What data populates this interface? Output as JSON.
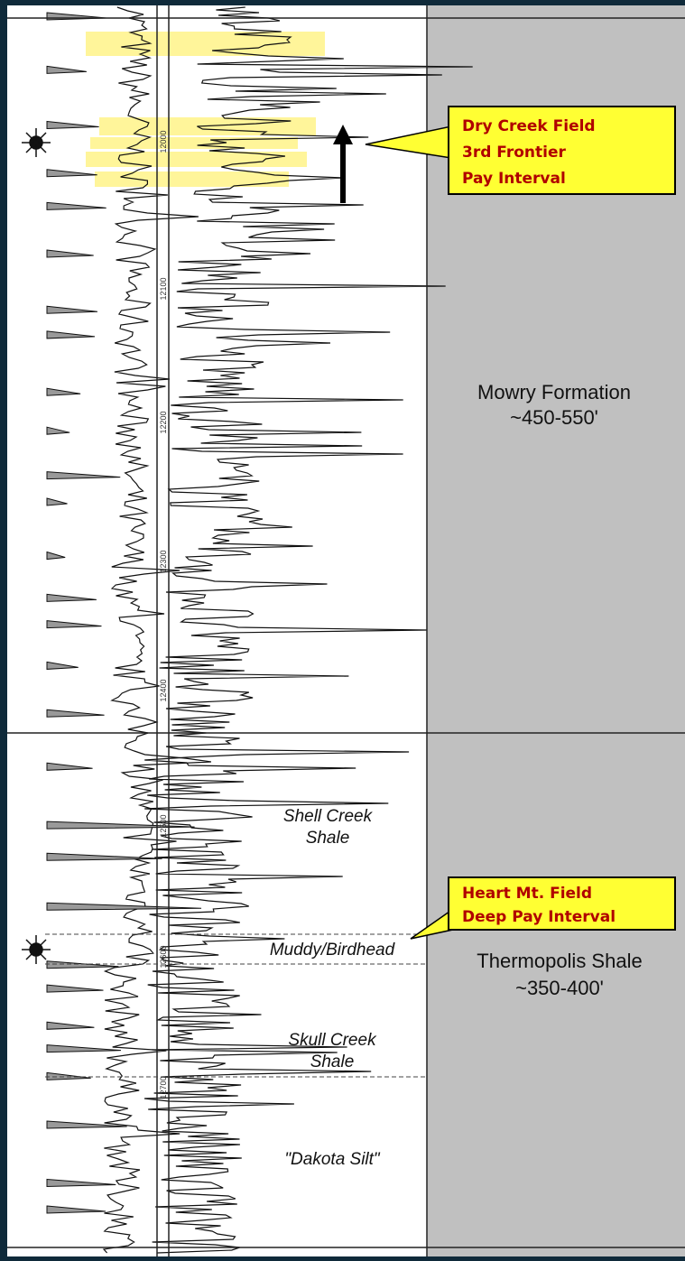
{
  "depth_track": {
    "labels": [
      "12000",
      "12100",
      "12200",
      "12300",
      "12400",
      "12500",
      "12600",
      "12700"
    ]
  },
  "callouts": [
    {
      "lines": [
        "Dry Creek  Field",
        "3rd Frontier",
        "Pay Interval"
      ]
    },
    {
      "lines": [
        "Heart Mt. Field",
        "Deep Pay Interval"
      ]
    }
  ],
  "units": [
    {
      "lines": [
        "Shell Creek",
        "Shale"
      ]
    },
    {
      "lines": [
        "Muddy/Birdhead"
      ]
    },
    {
      "lines": [
        "Skull Creek",
        "Shale"
      ]
    },
    {
      "lines": [
        "\"Dakota Silt\""
      ]
    }
  ],
  "formations": [
    {
      "lines": [
        "Mowry Formation",
        "~450-550'"
      ]
    },
    {
      "lines": [
        "Thermopolis Shale",
        "~350-400'"
      ]
    }
  ]
}
